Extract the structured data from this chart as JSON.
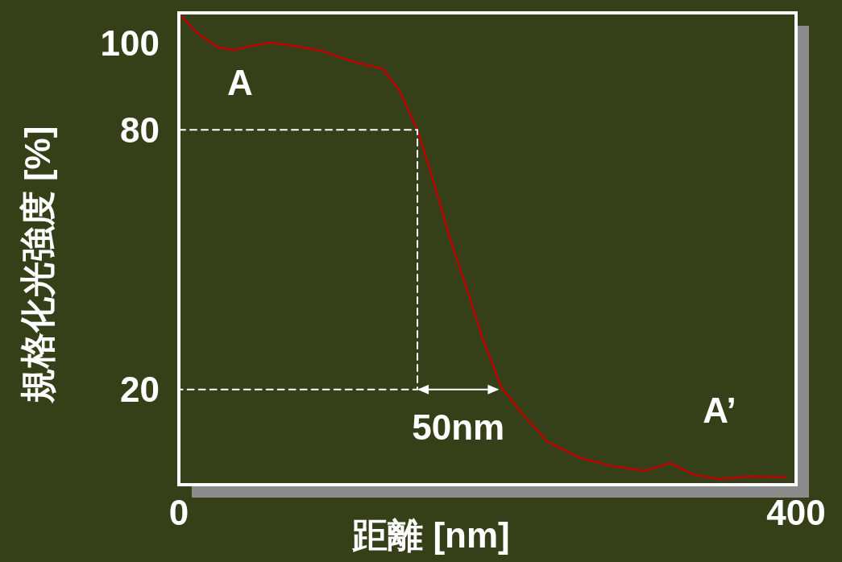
{
  "chart_data": {
    "type": "line",
    "xlabel": "距離 [nm]",
    "ylabel": "規格化光強度 [%]",
    "xlim": [
      0,
      400
    ],
    "xticks": [
      0,
      400
    ],
    "ylim": [
      -2,
      107
    ],
    "yticks": [
      20,
      80,
      100
    ],
    "grid": false,
    "marker": "none",
    "series": [
      {
        "color": "#c00000",
        "line_style": "solid",
        "x": [
          2,
          12,
          25,
          35.5,
          46,
          59,
          72,
          93,
          114,
          132,
          142.6,
          154.6,
          166,
          176.5,
          187,
          197,
          209,
          223.5,
          239,
          260,
          281,
          302,
          318.5,
          333,
          349,
          370,
          393
        ],
        "values": [
          106.2,
          102.3,
          99.1,
          98.4,
          99.3,
          100.1,
          99.5,
          98.2,
          95.6,
          94.1,
          89.3,
          80,
          67,
          54,
          42.8,
          31.7,
          20.5,
          14,
          7.9,
          4.2,
          2.3,
          1.2,
          3,
          0.4,
          -0.7,
          -0.1,
          -0.3
        ]
      },
      {
        "color": "#ffffff",
        "line_style": "dashed",
        "x": [
          0,
          154.6,
          154.6,
          0
        ],
        "values": [
          80,
          80,
          20,
          20
        ]
      }
    ],
    "annotations": [
      "A",
      "A’",
      "50nm"
    ]
  }
}
